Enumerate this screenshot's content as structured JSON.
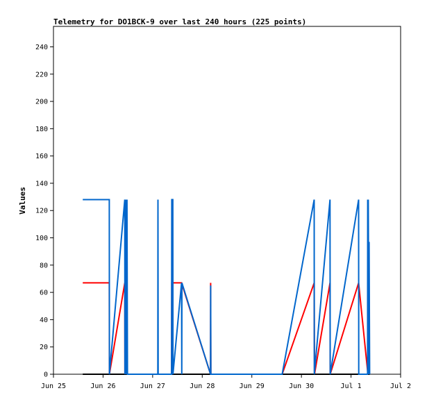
{
  "chart_data": {
    "type": "line",
    "title": "Telemetry for DO1BCK-9 over last 240 hours (225 points)",
    "xlabel": "",
    "ylabel": "Values",
    "xlim": [
      "2024-06-25T00:00",
      "2024-07-02T00:00"
    ],
    "ylim": [
      0,
      255
    ],
    "x_ticks": [
      {
        "x": "2024-06-25T00:00",
        "label": "Jun 25"
      },
      {
        "x": "2024-06-26T00:00",
        "label": "Jun 26"
      },
      {
        "x": "2024-06-27T00:00",
        "label": "Jun 27"
      },
      {
        "x": "2024-06-28T00:00",
        "label": "Jun 28"
      },
      {
        "x": "2024-06-29T00:00",
        "label": "Jun 29"
      },
      {
        "x": "2024-06-30T00:00",
        "label": "Jun 30"
      },
      {
        "x": "2024-07-01T00:00",
        "label": "Jul 1"
      },
      {
        "x": "2024-07-02T00:00",
        "label": "Jul 2"
      }
    ],
    "y_ticks": [
      0,
      20,
      40,
      60,
      80,
      100,
      120,
      140,
      160,
      180,
      200,
      220,
      240
    ],
    "grid": false,
    "series": [
      {
        "color": "#ff0000",
        "points": [
          {
            "x": "2024-06-25T14:10",
            "y": 67
          },
          {
            "x": "2024-06-26T03:00",
            "y": 67
          },
          {
            "x": "2024-06-26T03:05",
            "y": 0
          },
          {
            "x": "2024-06-26T10:30",
            "y": 67
          },
          {
            "x": "2024-06-26T10:35",
            "y": 0
          },
          {
            "x": "2024-06-26T11:50",
            "y": 0
          },
          {
            "x": "2024-06-27T09:10",
            "y": 0
          },
          {
            "x": "2024-06-27T09:15",
            "y": 67
          },
          {
            "x": "2024-06-27T14:00",
            "y": 67
          },
          {
            "x": "2024-06-28T04:00",
            "y": 0
          },
          {
            "x": "2024-06-28T04:05",
            "y": 67
          },
          {
            "x": "2024-06-28T04:10",
            "y": 0
          },
          {
            "x": "2024-06-29T14:40",
            "y": 0
          },
          {
            "x": "2024-06-30T06:10",
            "y": 67
          },
          {
            "x": "2024-06-30T06:15",
            "y": 34
          },
          {
            "x": "2024-06-30T06:20",
            "y": 0
          },
          {
            "x": "2024-06-30T13:50",
            "y": 67
          },
          {
            "x": "2024-06-30T13:55",
            "y": 0
          },
          {
            "x": "2024-07-01T03:40",
            "y": 67
          },
          {
            "x": "2024-07-01T08:10",
            "y": 0
          },
          {
            "x": "2024-07-01T08:30",
            "y": 17
          },
          {
            "x": "2024-07-01T08:50",
            "y": 0
          }
        ]
      },
      {
        "color": "#000000",
        "points": [
          {
            "x": "2024-06-25T14:10",
            "y": 0
          },
          {
            "x": "2024-07-01T09:00",
            "y": 0
          }
        ]
      },
      {
        "color": "#0066cc",
        "points": [
          {
            "x": "2024-06-25T14:10",
            "y": 128
          },
          {
            "x": "2024-06-26T03:00",
            "y": 128
          },
          {
            "x": "2024-06-26T03:05",
            "y": 0
          },
          {
            "x": "2024-06-26T10:30",
            "y": 128
          },
          {
            "x": "2024-06-26T10:35",
            "y": 0
          },
          {
            "x": "2024-06-26T10:40",
            "y": 128
          },
          {
            "x": "2024-06-26T11:05",
            "y": 0
          },
          {
            "x": "2024-06-26T11:10",
            "y": 128
          },
          {
            "x": "2024-06-26T11:30",
            "y": 0
          },
          {
            "x": "2024-06-26T11:35",
            "y": 128
          },
          {
            "x": "2024-06-26T11:50",
            "y": 0
          },
          {
            "x": "2024-06-27T02:30",
            "y": 0
          },
          {
            "x": "2024-06-27T02:35",
            "y": 128
          },
          {
            "x": "2024-06-27T02:40",
            "y": 0
          },
          {
            "x": "2024-06-27T09:10",
            "y": 0
          },
          {
            "x": "2024-06-27T09:15",
            "y": 128
          },
          {
            "x": "2024-06-27T09:45",
            "y": 128
          },
          {
            "x": "2024-06-27T09:50",
            "y": 0
          },
          {
            "x": "2024-06-27T14:00",
            "y": 67
          },
          {
            "x": "2024-06-27T14:05",
            "y": 0
          },
          {
            "x": "2024-06-27T14:10",
            "y": 67
          },
          {
            "x": "2024-06-28T04:00",
            "y": 0
          },
          {
            "x": "2024-06-28T04:05",
            "y": 65
          },
          {
            "x": "2024-06-28T04:10",
            "y": 0
          },
          {
            "x": "2024-06-29T14:40",
            "y": 0
          },
          {
            "x": "2024-06-30T06:10",
            "y": 128
          },
          {
            "x": "2024-06-30T06:15",
            "y": 0
          },
          {
            "x": "2024-06-30T13:50",
            "y": 128
          },
          {
            "x": "2024-06-30T13:55",
            "y": 0
          },
          {
            "x": "2024-07-01T03:40",
            "y": 128
          },
          {
            "x": "2024-07-01T03:45",
            "y": 0
          },
          {
            "x": "2024-07-01T08:00",
            "y": 0
          },
          {
            "x": "2024-07-01T08:05",
            "y": 128
          },
          {
            "x": "2024-07-01T08:10",
            "y": 0
          },
          {
            "x": "2024-07-01T08:20",
            "y": 128
          },
          {
            "x": "2024-07-01T08:40",
            "y": 0
          },
          {
            "x": "2024-07-01T08:45",
            "y": 97
          },
          {
            "x": "2024-07-01T09:00",
            "y": 0
          }
        ]
      }
    ]
  }
}
